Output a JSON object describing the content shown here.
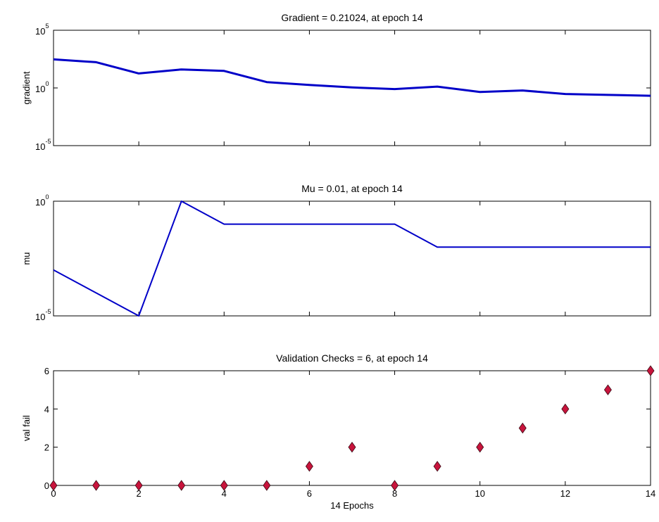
{
  "chart_data": [
    {
      "type": "line",
      "title": "Gradient = 0.21024, at epoch 14",
      "xlabel": "",
      "ylabel": "gradient",
      "yscale": "log",
      "ylim": [
        1e-05,
        100000
      ],
      "xlim": [
        0,
        14
      ],
      "yticks": [
        {
          "base": "10",
          "exp": "5",
          "value": 100000
        },
        {
          "base": "10",
          "exp": "0",
          "value": 1
        },
        {
          "base": "10",
          "exp": "-5",
          "value": 1e-05
        }
      ],
      "xticks": [
        0,
        2,
        4,
        6,
        8,
        10,
        12,
        14
      ],
      "show_xtick_labels": false,
      "line_color": "#0000c8",
      "line_width": 3,
      "x": [
        0,
        1,
        2,
        3,
        4,
        5,
        6,
        7,
        8,
        9,
        10,
        11,
        12,
        13,
        14
      ],
      "y": [
        300,
        170,
        18,
        40,
        30,
        3.2,
        1.8,
        1.1,
        0.8,
        1.3,
        0.45,
        0.6,
        0.3,
        0.25,
        0.21024
      ]
    },
    {
      "type": "line",
      "title": "Mu = 0.01, at epoch 14",
      "xlabel": "",
      "ylabel": "mu",
      "yscale": "log",
      "ylim": [
        1e-05,
        1
      ],
      "xlim": [
        0,
        14
      ],
      "yticks": [
        {
          "base": "10",
          "exp": "0",
          "value": 1
        },
        {
          "base": "10",
          "exp": "-5",
          "value": 1e-05
        }
      ],
      "xticks": [
        0,
        2,
        4,
        6,
        8,
        10,
        12,
        14
      ],
      "show_xtick_labels": false,
      "line_color": "#0000c8",
      "line_width": 2,
      "x": [
        0,
        1,
        2,
        3,
        4,
        5,
        6,
        7,
        8,
        9,
        10,
        11,
        12,
        13,
        14
      ],
      "y": [
        0.001,
        0.0001,
        1e-05,
        1,
        0.1,
        0.1,
        0.1,
        0.1,
        0.1,
        0.01,
        0.01,
        0.01,
        0.01,
        0.01,
        0.01
      ]
    },
    {
      "type": "scatter",
      "title": "Validation Checks = 6, at epoch 14",
      "xlabel": "14 Epochs",
      "ylabel": "val fail",
      "yscale": "linear",
      "ylim": [
        0,
        6
      ],
      "xlim": [
        0,
        14
      ],
      "yticks": [
        0,
        2,
        4,
        6
      ],
      "xticks": [
        0,
        2,
        4,
        6,
        8,
        10,
        12,
        14
      ],
      "show_xtick_labels": true,
      "marker": "diamond",
      "marker_color": "#c8143c",
      "x": [
        0,
        1,
        2,
        3,
        4,
        5,
        6,
        7,
        8,
        9,
        10,
        11,
        12,
        13,
        14
      ],
      "y": [
        0,
        0,
        0,
        0,
        0,
        0,
        1,
        2,
        0,
        1,
        2,
        3,
        4,
        5,
        6
      ]
    }
  ]
}
